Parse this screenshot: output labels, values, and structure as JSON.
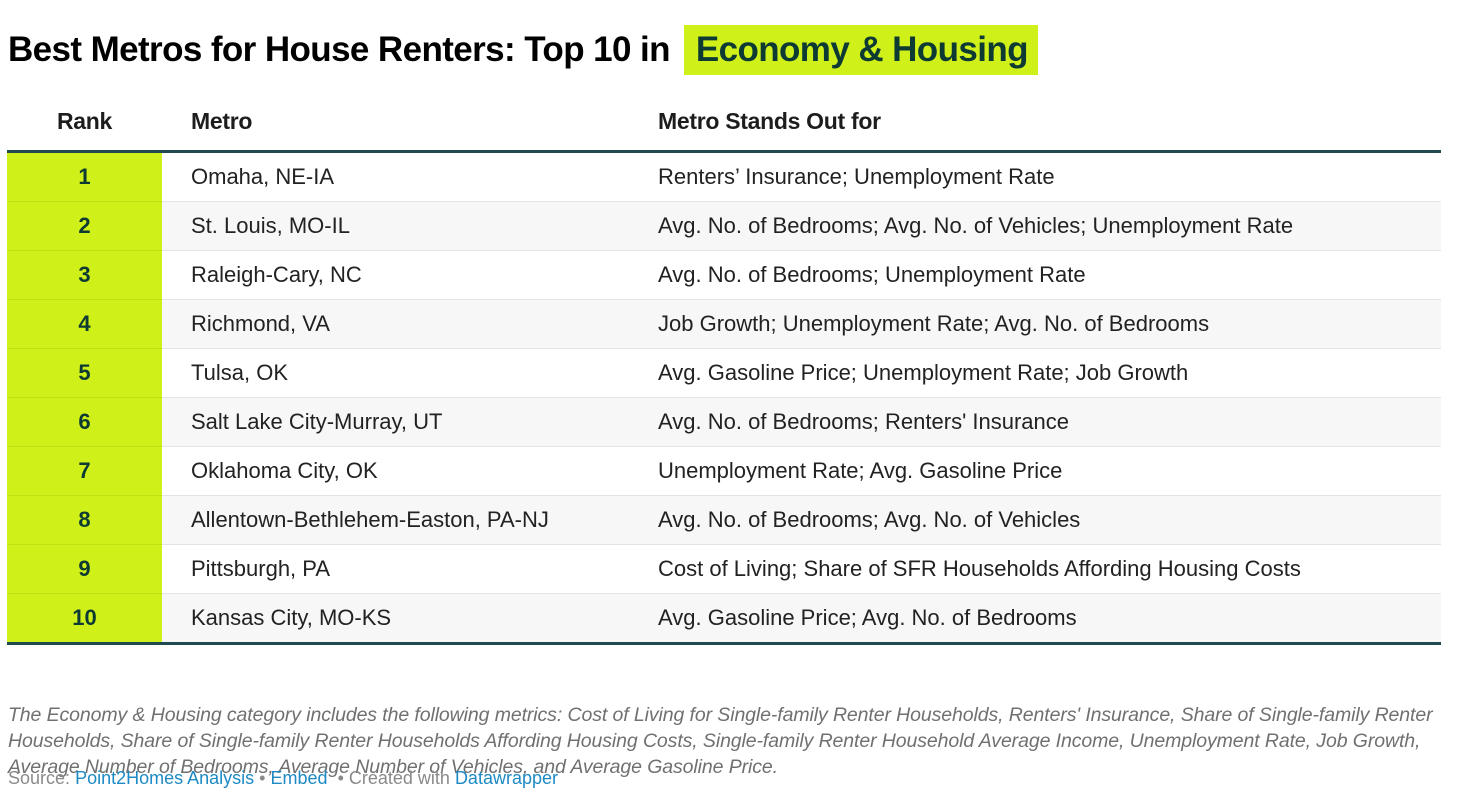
{
  "header": {
    "title_prefix": "Best Metros for House Renters: Top 10 in",
    "title_highlight": "Economy & Housing"
  },
  "colors": {
    "highlight_bg": "#d0f01a",
    "highlight_text": "#0d3a33",
    "rule": "#214a50",
    "link": "#1d8ac4",
    "notes_text": "#707070",
    "row_stripe": "#f7f7f7"
  },
  "table": {
    "columns": [
      "Rank",
      "Metro",
      "Metro Stands Out for"
    ],
    "rows": [
      {
        "rank": "1",
        "metro": "Omaha, NE-IA",
        "stands_out_for": "Renters’ Insurance; Unemployment Rate"
      },
      {
        "rank": "2",
        "metro": "St. Louis, MO-IL",
        "stands_out_for": "Avg. No. of Bedrooms; Avg. No. of Vehicles; Unemployment Rate"
      },
      {
        "rank": "3",
        "metro": "Raleigh-Cary, NC",
        "stands_out_for": "Avg. No. of Bedrooms; Unemployment Rate"
      },
      {
        "rank": "4",
        "metro": "Richmond, VA",
        "stands_out_for": "Job Growth; Unemployment Rate; Avg. No. of Bedrooms"
      },
      {
        "rank": "5",
        "metro": "Tulsa, OK",
        "stands_out_for": "Avg. Gasoline Price; Unemployment Rate; Job Growth"
      },
      {
        "rank": "6",
        "metro": "Salt Lake City-Murray, UT",
        "stands_out_for": "Avg. No. of Bedrooms; Renters' Insurance"
      },
      {
        "rank": "7",
        "metro": "Oklahoma City, OK",
        "stands_out_for": "Unemployment Rate; Avg. Gasoline Price"
      },
      {
        "rank": "8",
        "metro": "Allentown-Bethlehem-Easton, PA-NJ",
        "stands_out_for": "Avg. No. of Bedrooms; Avg. No. of Vehicles"
      },
      {
        "rank": "9",
        "metro": "Pittsburgh, PA",
        "stands_out_for": "Cost of Living; Share of SFR Households Affording Housing Costs"
      },
      {
        "rank": "10",
        "metro": "Kansas City, MO-KS",
        "stands_out_for": "Avg. Gasoline Price; Avg. No. of Bedrooms"
      }
    ]
  },
  "notes": "The Economy & Housing category includes the following metrics: Cost of Living for Single-family Renter Households, Renters' Insurance, Share of Single-family Renter Households, Share of Single-family Renter Households Affording Housing Costs, Single-family Renter Household Average Income, Unemployment Rate, Job Growth, Average Number of Bedrooms, Average Number of Vehicles, and Average Gasoline Price.",
  "footer": {
    "source_label": "Source:",
    "source_link": "Point2Homes Analysis",
    "separator": "•",
    "embed_link": "Embed",
    "created_with_label": "• Created with",
    "datawrapper_link": "Datawrapper"
  },
  "chart_data": {
    "type": "table",
    "title": "Best Metros for House Renters: Top 10 in Economy & Housing",
    "columns": [
      "Rank",
      "Metro",
      "Metro Stands Out for"
    ],
    "rows": [
      [
        1,
        "Omaha, NE-IA",
        "Renters’ Insurance; Unemployment Rate"
      ],
      [
        2,
        "St. Louis, MO-IL",
        "Avg. No. of Bedrooms; Avg. No. of Vehicles; Unemployment Rate"
      ],
      [
        3,
        "Raleigh-Cary, NC",
        "Avg. No. of Bedrooms; Unemployment Rate"
      ],
      [
        4,
        "Richmond, VA",
        "Job Growth; Unemployment Rate; Avg. No. of Bedrooms"
      ],
      [
        5,
        "Tulsa, OK",
        "Avg. Gasoline Price; Unemployment Rate; Job Growth"
      ],
      [
        6,
        "Salt Lake City-Murray, UT",
        "Avg. No. of Bedrooms; Renters' Insurance"
      ],
      [
        7,
        "Oklahoma City, OK",
        "Unemployment Rate; Avg. Gasoline Price"
      ],
      [
        8,
        "Allentown-Bethlehem-Easton, PA-NJ",
        "Avg. No. of Bedrooms; Avg. No. of Vehicles"
      ],
      [
        9,
        "Pittsburgh, PA",
        "Cost of Living; Share of SFR Households Affording Housing Costs"
      ],
      [
        10,
        "Kansas City, MO-KS",
        "Avg. Gasoline Price; Avg. No. of Bedrooms"
      ]
    ],
    "notes": "The Economy & Housing category includes the following metrics: Cost of Living for Single-family Renter Households, Renters' Insurance, Share of Single-family Renter Households, Share of Single-family Renter Households Affording Housing Costs, Single-family Renter Household Average Income, Unemployment Rate, Job Growth, Average Number of Bedrooms, Average Number of Vehicles, and Average Gasoline Price.",
    "source": "Point2Homes Analysis"
  }
}
